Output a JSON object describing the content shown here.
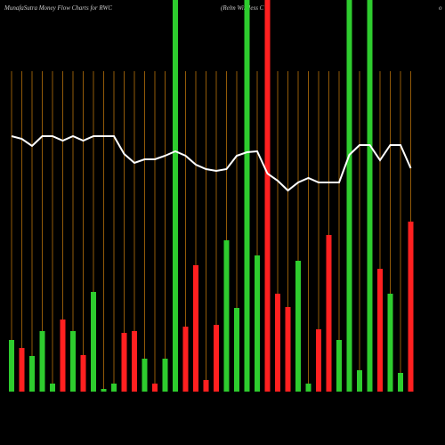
{
  "chart_data": {
    "type": "bar",
    "title": "MunafaSutra  Money Flow  Charts for RWC",
    "subtitle": "(Relm Wireless C",
    "corner_text": "o",
    "categories": [
      null,
      null,
      null,
      null,
      null,
      null,
      null,
      null,
      null,
      null,
      null,
      null,
      null,
      null,
      null,
      null,
      null,
      null,
      null,
      null,
      null,
      null,
      null,
      null,
      null,
      null,
      null,
      null,
      null,
      null,
      null,
      null,
      null,
      null,
      null,
      null,
      null,
      null,
      null,
      null
    ],
    "values": [
      58,
      49,
      40,
      68,
      9,
      81,
      68,
      41,
      112,
      3,
      9,
      66,
      68,
      37,
      9,
      37,
      440,
      73,
      142,
      13,
      75,
      170,
      94,
      440,
      153,
      440,
      110,
      95,
      147,
      9,
      70,
      176,
      58,
      440,
      24,
      440,
      138,
      110,
      21,
      191
    ],
    "colors": [
      "#2ecc2e",
      "#ff2020",
      "#2ecc2e",
      "#2ecc2e",
      "#2ecc2e",
      "#ff2020",
      "#2ecc2e",
      "#ff2020",
      "#2ecc2e",
      "#2ecc2e",
      "#2ecc2e",
      "#ff2020",
      "#ff2020",
      "#2ecc2e",
      "#ff2020",
      "#2ecc2e",
      "#2ecc2e",
      "#ff2020",
      "#ff2020",
      "#ff2020",
      "#ff2020",
      "#2ecc2e",
      "#2ecc2e",
      "#2ecc2e",
      "#2ecc2e",
      "#ff2020",
      "#ff2020",
      "#ff2020",
      "#2ecc2e",
      "#2ecc2e",
      "#ff2020",
      "#ff2020",
      "#2ecc2e",
      "#2ecc2e",
      "#2ecc2e",
      "#2ecc2e",
      "#ff2020",
      "#2ecc2e",
      "#2ecc2e",
      "#ff2020"
    ],
    "line_values": [
      287,
      284,
      276,
      287,
      287,
      282,
      287,
      282,
      287,
      287,
      287,
      267,
      257,
      261,
      261,
      265,
      270,
      265,
      255,
      250,
      248,
      250,
      265,
      269,
      270,
      245,
      237,
      226,
      235,
      240,
      235,
      235,
      235,
      266,
      277,
      277,
      260,
      277,
      277,
      251
    ],
    "line_color": "#ffffff",
    "guide_color": "#b8720a",
    "ylim": [
      0,
      440
    ]
  }
}
